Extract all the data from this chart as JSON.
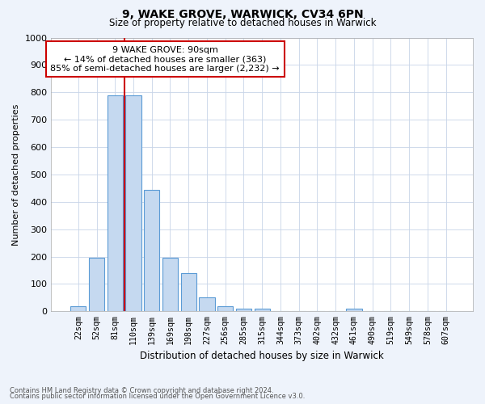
{
  "title1": "9, WAKE GROVE, WARWICK, CV34 6PN",
  "title2": "Size of property relative to detached houses in Warwick",
  "xlabel": "Distribution of detached houses by size in Warwick",
  "ylabel": "Number of detached properties",
  "categories": [
    "22sqm",
    "52sqm",
    "81sqm",
    "110sqm",
    "139sqm",
    "169sqm",
    "198sqm",
    "227sqm",
    "256sqm",
    "285sqm",
    "315sqm",
    "344sqm",
    "373sqm",
    "402sqm",
    "432sqm",
    "461sqm",
    "490sqm",
    "519sqm",
    "549sqm",
    "578sqm",
    "607sqm"
  ],
  "bar_values": [
    20,
    197,
    790,
    790,
    443,
    197,
    140,
    50,
    18,
    11,
    11,
    0,
    0,
    0,
    0,
    10,
    0,
    0,
    0,
    0,
    0
  ],
  "bar_color": "#c5d9f0",
  "bar_edge_color": "#5b9bd5",
  "vline_index": 2,
  "vline_color": "#cc0000",
  "ylim": [
    0,
    1000
  ],
  "yticks": [
    0,
    100,
    200,
    300,
    400,
    500,
    600,
    700,
    800,
    900,
    1000
  ],
  "annotation_title": "9 WAKE GROVE: 90sqm",
  "annotation_line1": "← 14% of detached houses are smaller (363)",
  "annotation_line2": "85% of semi-detached houses are larger (2,232) →",
  "annotation_box_edgecolor": "#cc0000",
  "footer1": "Contains HM Land Registry data © Crown copyright and database right 2024.",
  "footer2": "Contains public sector information licensed under the Open Government Licence v3.0.",
  "bg_color": "#eef3fb",
  "plot_bg_color": "#ffffff",
  "grid_color": "#c8d4e8"
}
